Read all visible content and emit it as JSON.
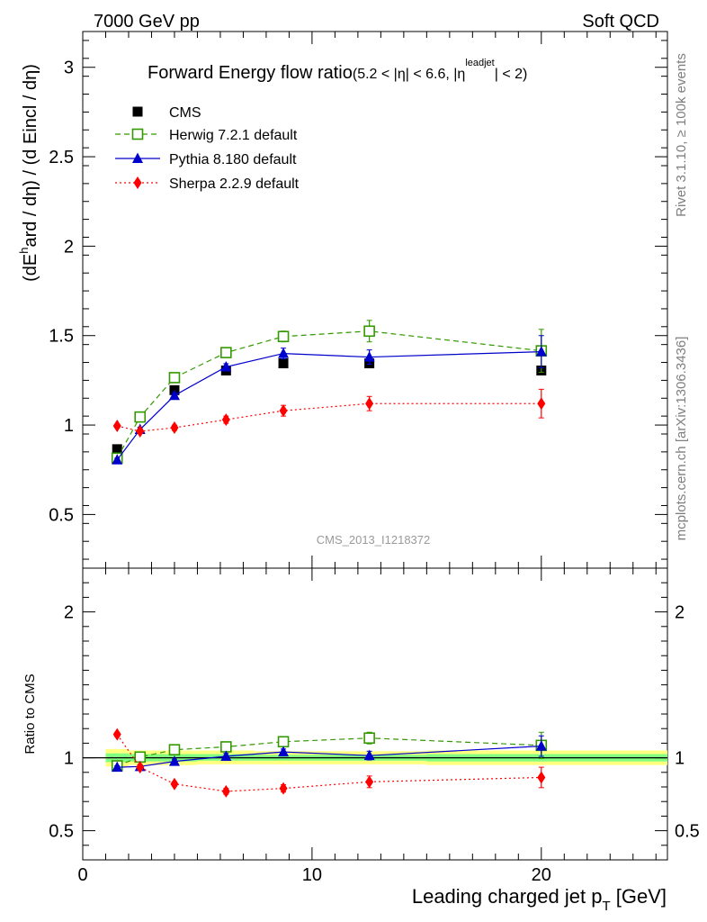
{
  "header": {
    "left": "7000 GeV pp",
    "right": "Soft QCD"
  },
  "side_labels": {
    "rivet": "Rivet 3.1.10, ≥ 100k events",
    "mcplots": "mcplots.cern.ch [arXiv:1306.3436]"
  },
  "plot": {
    "title_main": "Forward Energy flow ratio",
    "title_cond_a": "(5.2 < |η| < 6.6, |η",
    "title_cond_sup": "leadjet",
    "title_cond_b": "| < 2)",
    "ylabel_a": "(dE",
    "ylabel_sup": "h",
    "ylabel_b": "ard / dη) / (d Eincl / dη)",
    "analysis_tag": "CMS_2013_I1218372",
    "xlabel_a": "Leading charged jet p",
    "xlabel_sub": "T",
    "xlabel_b": " [GeV]",
    "ratio_ylabel": "Ratio to CMS"
  },
  "chart_data": {
    "type": "line",
    "xlim": [
      0,
      25.5
    ],
    "main_ylim": [
      0.2,
      3.2
    ],
    "ratio_ylim": [
      0.3,
      2.3
    ],
    "x_ticks": [
      0,
      10,
      20
    ],
    "main_y_ticks": [
      "0.5",
      "1",
      "1.5",
      "2",
      "2.5",
      "3"
    ],
    "ratio_y_ticks": [
      "0.5",
      "1",
      "2"
    ],
    "legend_position": "top-left",
    "bands": [
      {
        "x0": 1,
        "x1": 2,
        "yellow": [
          0.94,
          1.06
        ],
        "green": [
          0.97,
          1.03
        ]
      },
      {
        "x0": 2,
        "x1": 3,
        "yellow": [
          0.95,
          1.05
        ],
        "green": [
          0.975,
          1.025
        ]
      },
      {
        "x0": 3,
        "x1": 5,
        "yellow": [
          0.95,
          1.05
        ],
        "green": [
          0.975,
          1.025
        ]
      },
      {
        "x0": 5,
        "x1": 7.5,
        "yellow": [
          0.955,
          1.05
        ],
        "green": [
          0.98,
          1.025
        ]
      },
      {
        "x0": 7.5,
        "x1": 10,
        "yellow": [
          0.955,
          1.045
        ],
        "green": [
          0.98,
          1.02
        ]
      },
      {
        "x0": 10,
        "x1": 15,
        "yellow": [
          0.955,
          1.045
        ],
        "green": [
          0.98,
          1.02
        ]
      },
      {
        "x0": 15,
        "x1": 25.5,
        "yellow": [
          0.95,
          1.05
        ],
        "green": [
          0.975,
          1.025
        ]
      }
    ],
    "series": [
      {
        "name": "CMS",
        "color": "#000000",
        "marker": "square-filled",
        "x": [
          1.5,
          2.5,
          4.0,
          6.25,
          8.75,
          12.5,
          20.0
        ],
        "y": [
          0.865,
          1.045,
          1.195,
          1.305,
          1.345,
          1.345,
          1.305
        ],
        "ratio": [
          1.0,
          1.0,
          1.0,
          1.0,
          1.0,
          1.0,
          1.0
        ]
      },
      {
        "name": "Herwig 7.2.1 default",
        "color": "#339900",
        "marker": "square-open",
        "line": "dashed",
        "x": [
          1.5,
          2.5,
          4.0,
          6.25,
          8.75,
          12.5,
          20.0
        ],
        "y": [
          0.815,
          1.045,
          1.265,
          1.405,
          1.495,
          1.525,
          1.415
        ],
        "err": [
          0.01,
          0.012,
          0.015,
          0.018,
          0.03,
          0.06,
          0.12
        ],
        "ratio": [
          0.945,
          1.005,
          1.055,
          1.075,
          1.11,
          1.135,
          1.085
        ],
        "ratio_err": [
          0.01,
          0.012,
          0.015,
          0.02,
          0.025,
          0.04,
          0.09
        ]
      },
      {
        "name": "Pythia 8.180 default",
        "color": "#0000cc",
        "marker": "triangle-filled",
        "line": "solid",
        "x": [
          1.5,
          2.5,
          4.0,
          6.25,
          8.75,
          12.5,
          20.0
        ],
        "y": [
          0.805,
          0.975,
          1.165,
          1.325,
          1.4,
          1.38,
          1.41
        ],
        "err": [
          0.01,
          0.012,
          0.015,
          0.018,
          0.03,
          0.04,
          0.09
        ],
        "ratio": [
          0.935,
          0.94,
          0.975,
          1.01,
          1.04,
          1.015,
          1.08
        ],
        "ratio_err": [
          0.01,
          0.012,
          0.015,
          0.02,
          0.02,
          0.03,
          0.07
        ]
      },
      {
        "name": "Sherpa 2.2.9 default",
        "color": "#ff0000",
        "marker": "diamond-filled",
        "line": "dotted",
        "x": [
          1.5,
          2.5,
          4.0,
          6.25,
          8.75,
          12.5,
          20.0
        ],
        "y": [
          0.995,
          0.965,
          0.985,
          1.03,
          1.08,
          1.12,
          1.12
        ],
        "err": [
          0.01,
          0.012,
          0.015,
          0.02,
          0.03,
          0.04,
          0.08
        ],
        "ratio": [
          1.16,
          0.935,
          0.82,
          0.77,
          0.79,
          0.835,
          0.865
        ],
        "ratio_err": [
          0.015,
          0.015,
          0.015,
          0.02,
          0.025,
          0.04,
          0.07
        ]
      }
    ]
  }
}
